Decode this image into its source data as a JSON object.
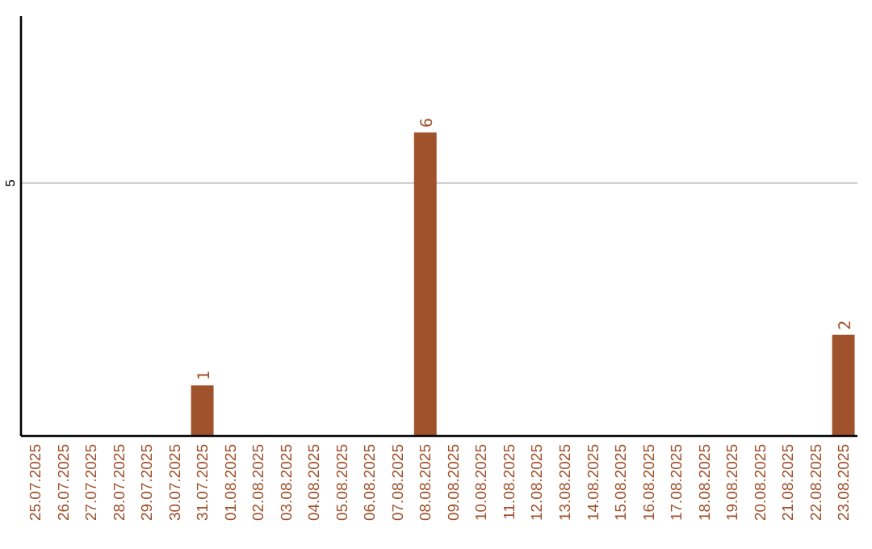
{
  "chart_data": {
    "type": "bar",
    "categories": [
      "25.07.2025",
      "26.07.2025",
      "27.07.2025",
      "28.07.2025",
      "29.07.2025",
      "30.07.2025",
      "31.07.2025",
      "01.08.2025",
      "02.08.2025",
      "03.08.2025",
      "04.08.2025",
      "05.08.2025",
      "06.08.2025",
      "07.08.2025",
      "08.08.2025",
      "09.08.2025",
      "10.08.2025",
      "11.08.2025",
      "12.08.2025",
      "13.08.2025",
      "14.08.2025",
      "15.08.2025",
      "16.08.2025",
      "17.08.2025",
      "18.08.2025",
      "19.08.2025",
      "20.08.2025",
      "21.08.2025",
      "22.08.2025",
      "23.08.2025"
    ],
    "values": [
      0,
      0,
      0,
      0,
      0,
      0,
      1,
      0,
      0,
      0,
      0,
      0,
      0,
      0,
      6,
      0,
      0,
      0,
      0,
      0,
      0,
      0,
      0,
      0,
      0,
      0,
      0,
      0,
      0,
      2
    ],
    "value_labels": [
      null,
      null,
      null,
      null,
      null,
      null,
      "1",
      null,
      null,
      null,
      null,
      null,
      null,
      null,
      "6",
      null,
      null,
      null,
      null,
      null,
      null,
      null,
      null,
      null,
      null,
      null,
      null,
      null,
      null,
      "2"
    ],
    "color": "#a0522d",
    "ylim": [
      0,
      8.3
    ],
    "yticks": [
      5
    ],
    "grid": "y"
  }
}
